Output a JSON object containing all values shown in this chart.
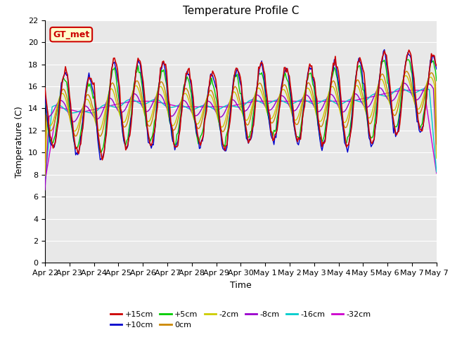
{
  "title": "Temperature Profile C",
  "xlabel": "Time",
  "ylabel": "Temperature (C)",
  "ylim": [
    0,
    22
  ],
  "yticks": [
    0,
    2,
    4,
    6,
    8,
    10,
    12,
    14,
    16,
    18,
    20,
    22
  ],
  "date_labels": [
    "Apr 22",
    "Apr 23",
    "Apr 24",
    "Apr 25",
    "Apr 26",
    "Apr 27",
    "Apr 28",
    "Apr 29",
    "Apr 30",
    "May 1",
    "May 2",
    "May 3",
    "May 4",
    "May 5",
    "May 6",
    "May 7"
  ],
  "n_days": 16,
  "series_colors": {
    "+15cm": "#cc0000",
    "+10cm": "#0000cc",
    "+5cm": "#00cc00",
    "0cm": "#cc8800",
    "-2cm": "#cccc00",
    "-8cm": "#9900cc",
    "-16cm": "#00cccc",
    "-32cm": "#cc00cc"
  },
  "legend_label": "GT_met",
  "legend_facecolor": "#ffffcc",
  "legend_edgecolor": "#cc0000",
  "plot_bg_color": "#e8e8e8",
  "title_fontsize": 11,
  "label_fontsize": 9,
  "tick_fontsize": 8,
  "day_amplitudes": [
    3.5,
    3.5,
    4.5,
    4.0,
    3.8,
    3.5,
    3.2,
    3.8,
    3.5,
    3.2,
    3.5,
    3.8,
    4.0,
    4.2,
    3.8,
    3.5
  ],
  "day_means": [
    14.0,
    13.5,
    14.0,
    14.5,
    14.5,
    14.0,
    14.0,
    14.0,
    14.5,
    14.5,
    14.5,
    14.5,
    14.5,
    15.0,
    15.5,
    15.5
  ]
}
